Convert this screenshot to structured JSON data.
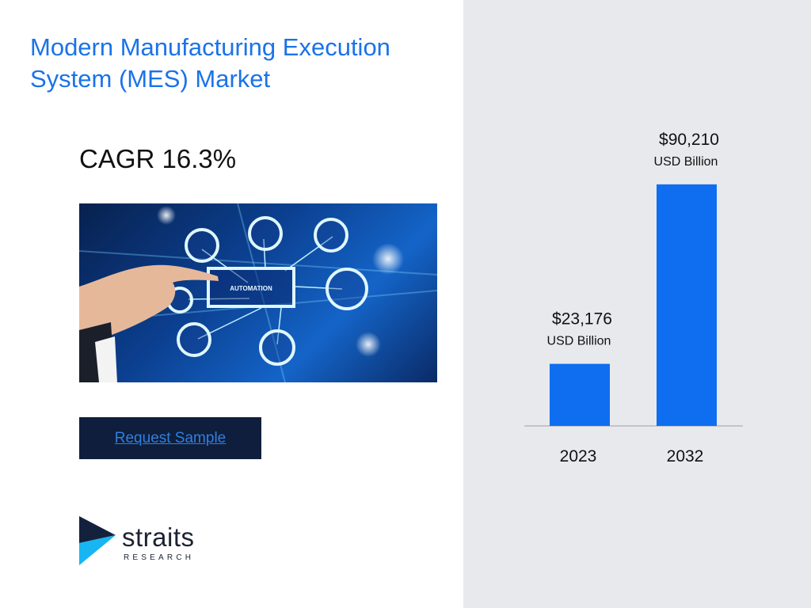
{
  "title": "Modern Manufacturing Execution System (MES) Market",
  "cagr": "CAGR 16.3%",
  "hero": {
    "center_label": "AUTOMATION"
  },
  "cta": {
    "label": "Request Sample"
  },
  "logo": {
    "word": "straits",
    "sub": "RESEARCH"
  },
  "colors": {
    "accent": "#1a73e8",
    "bar": "#0f6ef0",
    "panel": "#e8e9ec",
    "cta_bg": "#0f1e3c"
  },
  "chart_data": {
    "type": "bar",
    "categories": [
      "2023",
      "2032"
    ],
    "values": [
      23176,
      90210
    ],
    "value_labels": [
      "$23,176",
      "$90,210"
    ],
    "unit_label": "USD Billion",
    "title": "",
    "xlabel": "",
    "ylabel": "",
    "ylim": [
      0,
      102000
    ],
    "grid": false,
    "legend": "none"
  }
}
